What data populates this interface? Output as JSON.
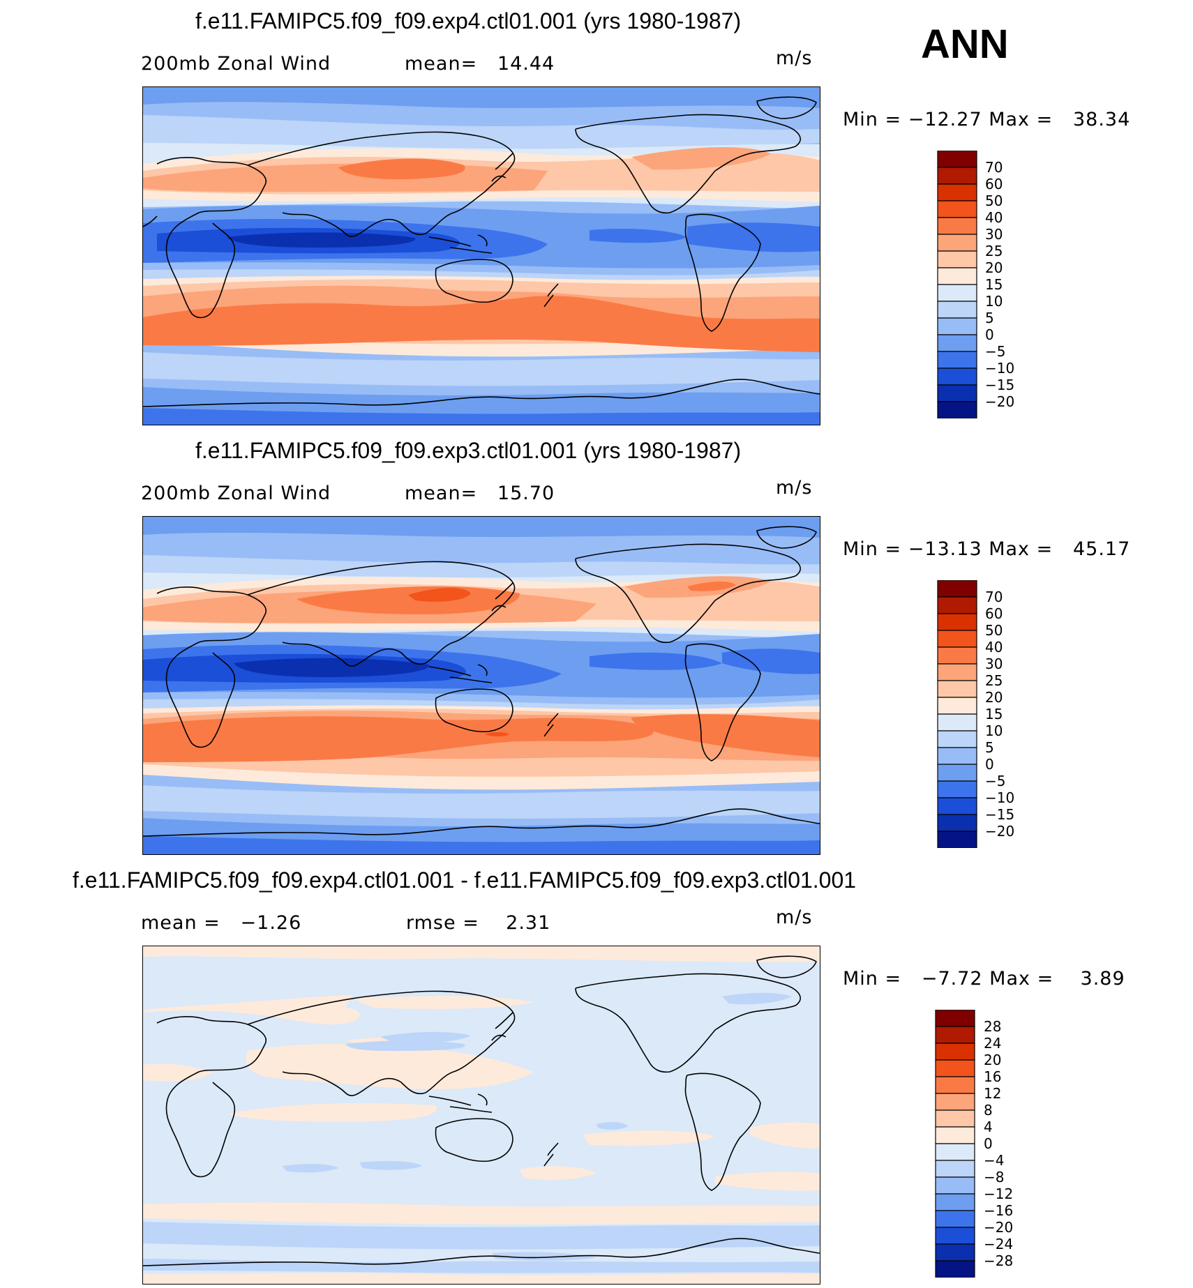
{
  "season": "ANN",
  "panels": [
    {
      "title": "f.e11.FAMIPC5.f09_f09.exp4.ctl01.001 (yrs 1980-1987)",
      "variable": "200mb Zonal Wind",
      "stat1": "mean=   14.44",
      "stat2": "",
      "units": "m/s",
      "minmax": "Min = −12.27 Max =   38.34",
      "colorbar_labels": [
        "70",
        "60",
        "50",
        "40",
        "30",
        "25",
        "20",
        "15",
        "10",
        "5",
        "0",
        "−5",
        "−10",
        "−15",
        "−20"
      ]
    },
    {
      "title": "f.e11.FAMIPC5.f09_f09.exp3.ctl01.001 (yrs 1980-1987)",
      "variable": "200mb Zonal Wind",
      "stat1": "mean=   15.70",
      "stat2": "",
      "units": "m/s",
      "minmax": "Min = −13.13 Max =   45.17",
      "colorbar_labels": [
        "70",
        "60",
        "50",
        "40",
        "30",
        "25",
        "20",
        "15",
        "10",
        "5",
        "0",
        "−5",
        "−10",
        "−15",
        "−20"
      ]
    },
    {
      "title": "f.e11.FAMIPC5.f09_f09.exp4.ctl01.001 - f.e11.FAMIPC5.f09_f09.exp3.ctl01.001",
      "variable": "",
      "stat1": "mean =   −1.26",
      "stat2": "rmse =    2.31",
      "units": "m/s",
      "minmax": "Min =   −7.72 Max =    3.89",
      "colorbar_labels": [
        "28",
        "24",
        "20",
        "16",
        "12",
        "8",
        "4",
        "0",
        "−4",
        "−8",
        "−12",
        "−16",
        "−20",
        "−24",
        "−28"
      ]
    }
  ],
  "colors": {
    "wind_scale": [
      "#800000",
      "#b01a00",
      "#d93200",
      "#f2541c",
      "#fa7a45",
      "#fca47a",
      "#fdc7a8",
      "#feeadb",
      "#dbe9f8",
      "#bcd5f8",
      "#98bcf6",
      "#6d9ef0",
      "#3d74ec",
      "#1b4fd8",
      "#0a30b0",
      "#041484"
    ],
    "diff_scale": [
      "#800000",
      "#b01a00",
      "#d93200",
      "#f2541c",
      "#fa7a45",
      "#fca47a",
      "#fdc7a8",
      "#feeadb",
      "#dbe9f8",
      "#bcd5f8",
      "#98bcf6",
      "#6d9ef0",
      "#3d74ec",
      "#1b4fd8",
      "#0a30b0",
      "#041484"
    ]
  }
}
